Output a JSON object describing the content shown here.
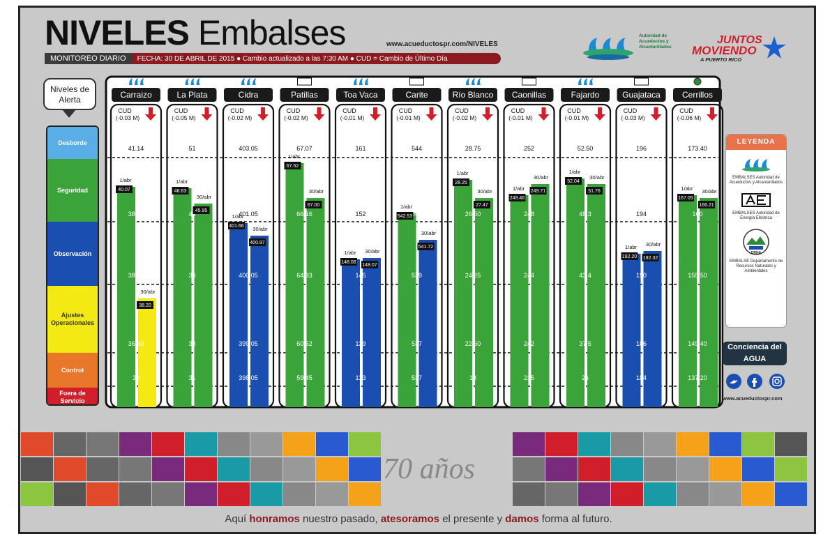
{
  "header": {
    "title_bold": "NIVELES",
    "title_thin": "Embalses",
    "website": "www.acueductospr.com/NIVELES",
    "monitoreo": "MONITOREO DIARIO",
    "date_line": "FECHA: 30 DE ABRIL DE 2015  ●  Cambio actualizado a las 7:30 AM ● CUD = Cambio de Último Día",
    "aaa_name": "Autoridad de Acueductos y Alcantarillados",
    "jm_line1": "JUNTOS",
    "jm_line2": "MOVIENDO",
    "jm_line3": "A PUERTO RICO"
  },
  "niveles_label": "Niveles de Alerta",
  "zones": [
    {
      "label": "Desborde",
      "color": "#5aaee6"
    },
    {
      "label": "Seguridad",
      "color": "#3aa33a"
    },
    {
      "label": "Observación",
      "color": "#1a4fb0"
    },
    {
      "label": "Ajustes Operacionales",
      "color": "#f3ea14"
    },
    {
      "label": "Control",
      "color": "#e8772a"
    },
    {
      "label": "Fuera de Servicio",
      "color": "#d01f2a"
    }
  ],
  "legend": {
    "title": "LEYENDA",
    "item1": "EMBALSES Autoridad de Acueductos y Alcantarillados",
    "item2": "EMBALSES Autoridad de Energía Eléctrica",
    "item3_badge": "DRNA",
    "item3": "EMBALSE Departamento de Recursos Naturales y Ambientales"
  },
  "conciencia": "Conciencia del AGUA",
  "website2": "www.acueductospr.com",
  "tagline_parts": [
    "Aquí ",
    "honramos",
    " nuestro pasado, ",
    "atesoramos",
    " el presente y ",
    "damos",
    " forma al futuro."
  ],
  "anniversary": "70 años",
  "cud_prefix": "CUD",
  "chart_data": {
    "type": "bar",
    "title": "NIVELES Embalses",
    "unit": "M",
    "date_labels": [
      "1/abr",
      "30/abr"
    ],
    "reservoirs": [
      {
        "name": "Carraizo",
        "agency": "AAA",
        "cud": "(-0.03 M)",
        "thresholds": {
          "desborde": "41.14",
          "seguridad": "38.50",
          "observacion": "38.50",
          "ajustes": "36.50",
          "control": "30"
        },
        "level_1abr": "40.07",
        "level_30abr": "38.20",
        "zone_30abr": "Ajustes Operacionales"
      },
      {
        "name": "La Plata",
        "agency": "AAA",
        "cud": "(-0.05 M)",
        "thresholds": {
          "desborde": "51",
          "seguridad": "43",
          "observacion": "39",
          "ajustes": "38",
          "control": "31"
        },
        "level_1abr": "48.63",
        "level_30abr": "45.95",
        "zone_30abr": "Seguridad"
      },
      {
        "name": "Cidra",
        "agency": "AAA",
        "cud": "(-0.02 M)",
        "thresholds": {
          "desborde": "403.05",
          "seguridad": "401.05",
          "observacion": "400.05",
          "ajustes": "399.05",
          "control": "398.05"
        },
        "level_1abr": "401.66",
        "level_30abr": "400.97",
        "zone_30abr": "Observación"
      },
      {
        "name": "Patillas",
        "agency": "AEE",
        "cud": "(-0.02 M)",
        "thresholds": {
          "desborde": "67.07",
          "seguridad": "66.16",
          "observacion": "64.33",
          "ajustes": "60.52",
          "control": "59.45"
        },
        "level_1abr": "67.52",
        "level_30abr": "67.00",
        "zone_30abr": "Seguridad"
      },
      {
        "name": "Toa Vaca",
        "agency": "AAA",
        "cud": "(-0.01 M)",
        "thresholds": {
          "desborde": "161",
          "seguridad": "152",
          "observacion": "145",
          "ajustes": "139",
          "control": "133"
        },
        "level_1abr": "148.06",
        "level_30abr": "148.07",
        "zone_30abr": "Observación"
      },
      {
        "name": "Carite",
        "agency": "AEE",
        "cud": "(-0.01 M)",
        "thresholds": {
          "desborde": "544",
          "seguridad": "542",
          "observacion": "539",
          "ajustes": "537",
          "control": "537"
        },
        "level_1abr": "542.53",
        "level_30abr": "541.72",
        "zone_30abr": "Observación"
      },
      {
        "name": "Río Blanco",
        "agency": "AAA",
        "cud": "(-0.02 M)",
        "thresholds": {
          "desborde": "28.75",
          "seguridad": "26.50",
          "observacion": "24.25",
          "ajustes": "22.50",
          "control": "18"
        },
        "level_1abr": "28.25",
        "level_30abr": "27.47",
        "zone_30abr": "Seguridad"
      },
      {
        "name": "Caonillas",
        "agency": "AEE",
        "cud": "(-0.01 M)",
        "thresholds": {
          "desborde": "252",
          "seguridad": "248",
          "observacion": "244",
          "ajustes": "242",
          "control": "235"
        },
        "level_1abr": "249.46",
        "level_30abr": "249.71",
        "zone_30abr": "Seguridad"
      },
      {
        "name": "Fajardo",
        "agency": "AAA",
        "cud": "(-0.01 M)",
        "thresholds": {
          "desborde": "52.50",
          "seguridad": "48.3",
          "observacion": "43.4",
          "ajustes": "37.5",
          "control": "26"
        },
        "level_1abr": "52.04",
        "level_30abr": "51.76",
        "zone_30abr": "Seguridad"
      },
      {
        "name": "Guajataca",
        "agency": "AEE",
        "cud": "(-0.03 M)",
        "thresholds": {
          "desborde": "196",
          "seguridad": "194",
          "observacion": "190",
          "ajustes": "186",
          "control": "184"
        },
        "level_1abr": "192.20",
        "level_30abr": "192.32",
        "zone_30abr": "Observación"
      },
      {
        "name": "Cerrillos",
        "agency": "DRNA",
        "cud": "(-0.06 M)",
        "thresholds": {
          "desborde": "173.40",
          "seguridad": "160",
          "observacion": "155.50",
          "ajustes": "149.40",
          "control": "137.20"
        },
        "level_1abr": "167.05",
        "level_30abr": "166.21",
        "zone_30abr": "Seguridad"
      }
    ]
  }
}
